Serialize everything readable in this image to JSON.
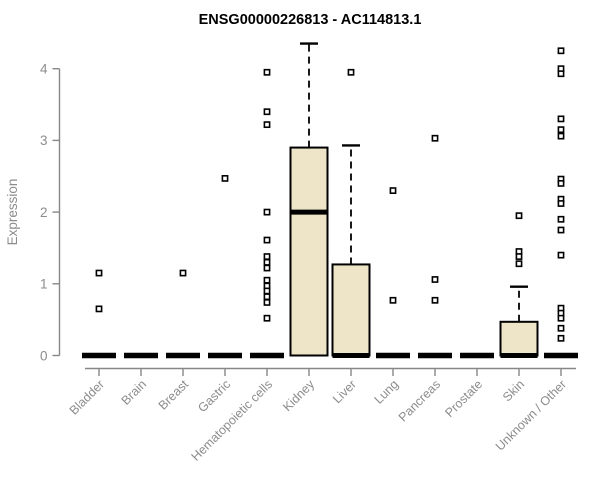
{
  "chart_data": {
    "type": "boxplot",
    "title": "ENSG00000226813 - AC114813.1",
    "ylabel": "Expression",
    "xlabel": "",
    "ylim": [
      0,
      4.4
    ],
    "yticks": [
      0,
      1,
      2,
      3,
      4
    ],
    "grid": false,
    "legend": false,
    "categories": [
      "Bladder",
      "Brain",
      "Breast",
      "Gastric",
      "Hematopoietic cells",
      "Kidney",
      "Liver",
      "Lung",
      "Pancreas",
      "Prostate",
      "Skin",
      "Unknown / Other"
    ],
    "boxes": [
      {
        "category": "Bladder",
        "q1": 0,
        "median": 0,
        "q3": 0,
        "whisker_low": 0,
        "whisker_high": 0,
        "outliers": [
          1.15,
          0.65
        ]
      },
      {
        "category": "Brain",
        "q1": 0,
        "median": 0,
        "q3": 0,
        "whisker_low": 0,
        "whisker_high": 0,
        "outliers": []
      },
      {
        "category": "Breast",
        "q1": 0,
        "median": 0,
        "q3": 0,
        "whisker_low": 0,
        "whisker_high": 0,
        "outliers": [
          1.15
        ]
      },
      {
        "category": "Gastric",
        "q1": 0,
        "median": 0,
        "q3": 0,
        "whisker_low": 0,
        "whisker_high": 0,
        "outliers": [
          2.47
        ]
      },
      {
        "category": "Hematopoietic cells",
        "q1": 0,
        "median": 0,
        "q3": 0,
        "whisker_low": 0,
        "whisker_high": 0,
        "outliers": [
          3.95,
          3.4,
          3.22,
          2.0,
          1.61,
          1.38,
          1.3,
          1.22,
          1.05,
          0.97,
          0.9,
          0.82,
          0.74,
          0.52
        ]
      },
      {
        "category": "Kidney",
        "q1": 0,
        "median": 2.0,
        "q3": 2.9,
        "whisker_low": 0,
        "whisker_high": 4.35,
        "outliers": []
      },
      {
        "category": "Liver",
        "q1": 0,
        "median": 0,
        "q3": 1.27,
        "whisker_low": 0,
        "whisker_high": 2.93,
        "outliers": [
          3.95
        ]
      },
      {
        "category": "Lung",
        "q1": 0,
        "median": 0,
        "q3": 0,
        "whisker_low": 0,
        "whisker_high": 0,
        "outliers": [
          2.3,
          0.77
        ]
      },
      {
        "category": "Pancreas",
        "q1": 0,
        "median": 0,
        "q3": 0,
        "whisker_low": 0,
        "whisker_high": 0,
        "outliers": [
          3.03,
          1.06,
          0.77
        ]
      },
      {
        "category": "Prostate",
        "q1": 0,
        "median": 0,
        "q3": 0,
        "whisker_low": 0,
        "whisker_high": 0,
        "outliers": []
      },
      {
        "category": "Skin",
        "q1": 0,
        "median": 0,
        "q3": 0.47,
        "whisker_low": 0,
        "whisker_high": 0.96,
        "outliers": [
          1.95,
          1.45,
          1.38,
          1.28
        ]
      },
      {
        "category": "Unknown / Other",
        "q1": 0,
        "median": 0,
        "q3": 0,
        "whisker_low": 0,
        "whisker_high": 0,
        "outliers": [
          4.25,
          4.0,
          3.93,
          3.3,
          3.15,
          3.06,
          2.46,
          2.4,
          2.18,
          2.12,
          1.9,
          1.75,
          1.4,
          0.66,
          0.59,
          0.52,
          0.38,
          0.24
        ]
      }
    ],
    "colors": {
      "box_fill": "#EEE5C8",
      "box_stroke": "#000000",
      "median": "#000000",
      "outlier": "#000000",
      "axis": "#878787",
      "axis_text": "#8C8C8C",
      "title": "#000000",
      "background": "#FFFFFF"
    }
  }
}
